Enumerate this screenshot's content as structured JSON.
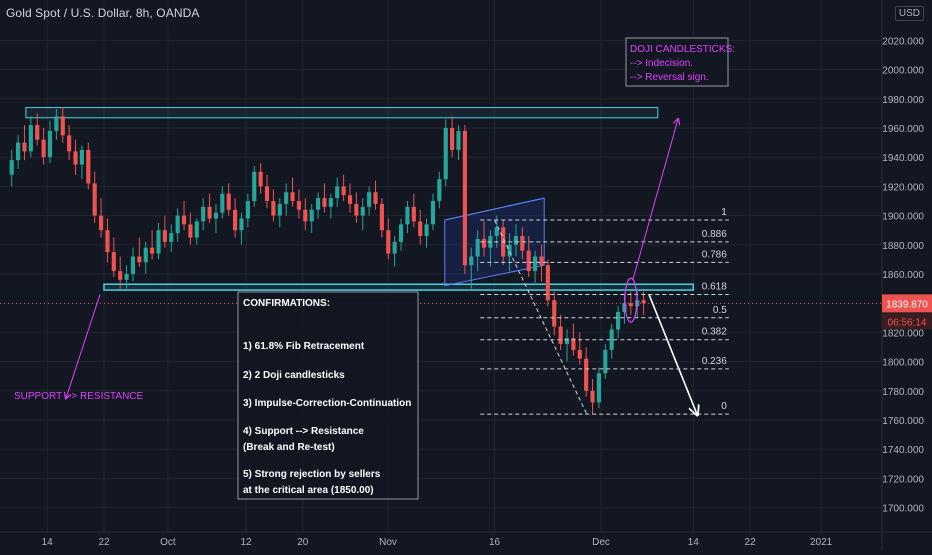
{
  "header": {
    "title": "Gold Spot / U.S. Dollar, 8h, OANDA",
    "currency": "USD"
  },
  "colors": {
    "background": "#131722",
    "grid": "#1f2431",
    "up": "#26a69a",
    "down": "#ef5350",
    "support": "#4dd0e1",
    "channel": "#2962ff",
    "annotation_magenta": "#e040fb",
    "fib_line": "#d1d4dc",
    "current_price": "#ef5350"
  },
  "chart_data": {
    "type": "candlestick",
    "symbol": "Gold Spot / U.S. Dollar",
    "interval": "8h",
    "source": "OANDA",
    "y_axis": {
      "range": [
        1700,
        2020
      ],
      "ticks": [
        1700,
        1720,
        1740,
        1760,
        1780,
        1800,
        1820,
        1840,
        1860,
        1880,
        1900,
        1920,
        1940,
        1960,
        1980,
        2000,
        2020
      ],
      "tick_labels": [
        "1700.000",
        "1720.000",
        "1740.000",
        "1760.000",
        "1780.000",
        "1800.000",
        "1820.000",
        "1840.000",
        "1860.000",
        "1880.000",
        "1900.000",
        "1920.000",
        "1940.000",
        "1960.000",
        "1980.000",
        "2000.000",
        "2020.000"
      ]
    },
    "x_axis": {
      "tick_labels": [
        "14",
        "22",
        "Oct",
        "12",
        "20",
        "Nov",
        "16",
        "Dec",
        "14",
        "22",
        "2021"
      ],
      "tick_dates": [
        "2020-09-14",
        "2020-09-22",
        "2020-10-01",
        "2020-10-12",
        "2020-10-20",
        "2020-11-01",
        "2020-11-16",
        "2020-12-01",
        "2020-12-14",
        "2020-12-22",
        "2021-01-01"
      ]
    },
    "current_price": {
      "value": 1839.87,
      "label": "1839.870",
      "countdown": "06:56:14"
    },
    "resistance_zone": {
      "from": 1967,
      "to": 1974,
      "start": "2020-09-11",
      "end": "2020-12-09"
    },
    "support_resistance_zone": {
      "from": 1849,
      "to": 1853,
      "start": "2020-09-22",
      "end": "2020-12-14"
    },
    "fibonacci": {
      "high": 1897,
      "low": 1764,
      "levels": [
        {
          "ratio": 1,
          "label": "1",
          "price": 1897
        },
        {
          "ratio": 0.886,
          "label": "0.886",
          "price": 1882
        },
        {
          "ratio": 0.786,
          "label": "0.786",
          "price": 1868
        },
        {
          "ratio": 0.618,
          "label": "0.618",
          "price": 1846
        },
        {
          "ratio": 0.5,
          "label": "0.5",
          "price": 1830
        },
        {
          "ratio": 0.382,
          "label": "0.382",
          "price": 1815
        },
        {
          "ratio": 0.236,
          "label": "0.236",
          "price": 1795
        },
        {
          "ratio": 0,
          "label": "0",
          "price": 1764
        }
      ]
    },
    "annotations": {
      "support_to_resistance": "SUPPORT --> RESISTANCE",
      "doji_title": "DOJI CANDLESTICKS:",
      "doji_line1": "--> Indecision.",
      "doji_line2": "--> Reversal sign.",
      "confirmations_title": "CONFIRMATIONS:",
      "confirmations": [
        "1) 61.8%  Fib Retracement",
        "2) 2 Doji candlesticks",
        "3) Impulse-Correction-Continuation",
        "4) Support --> Resistance",
        "     (Break and Re-test)",
        "5) Strong rejection by sellers",
        "     at the critical area (1850.00)"
      ]
    },
    "candles": [
      [
        1928,
        1945,
        1920,
        1938
      ],
      [
        1938,
        1955,
        1932,
        1950
      ],
      [
        1950,
        1962,
        1938,
        1944
      ],
      [
        1944,
        1968,
        1940,
        1962
      ],
      [
        1962,
        1970,
        1948,
        1952
      ],
      [
        1952,
        1960,
        1935,
        1940
      ],
      [
        1940,
        1965,
        1936,
        1958
      ],
      [
        1958,
        1973,
        1952,
        1968
      ],
      [
        1968,
        1974,
        1950,
        1955
      ],
      [
        1955,
        1962,
        1938,
        1944
      ],
      [
        1944,
        1952,
        1928,
        1935
      ],
      [
        1935,
        1948,
        1925,
        1945
      ],
      [
        1945,
        1950,
        1918,
        1922
      ],
      [
        1922,
        1930,
        1895,
        1900
      ],
      [
        1900,
        1912,
        1885,
        1890
      ],
      [
        1890,
        1898,
        1868,
        1875
      ],
      [
        1875,
        1885,
        1858,
        1862
      ],
      [
        1862,
        1872,
        1850,
        1856
      ],
      [
        1856,
        1866,
        1850,
        1860
      ],
      [
        1860,
        1878,
        1855,
        1872
      ],
      [
        1872,
        1885,
        1865,
        1868
      ],
      [
        1868,
        1882,
        1860,
        1878
      ],
      [
        1878,
        1890,
        1870,
        1874
      ],
      [
        1874,
        1895,
        1870,
        1890
      ],
      [
        1890,
        1900,
        1878,
        1882
      ],
      [
        1882,
        1894,
        1875,
        1888
      ],
      [
        1888,
        1905,
        1882,
        1900
      ],
      [
        1900,
        1910,
        1890,
        1894
      ],
      [
        1894,
        1902,
        1880,
        1885
      ],
      [
        1885,
        1898,
        1880,
        1896
      ],
      [
        1896,
        1912,
        1890,
        1906
      ],
      [
        1906,
        1915,
        1895,
        1898
      ],
      [
        1898,
        1908,
        1888,
        1902
      ],
      [
        1902,
        1920,
        1898,
        1915
      ],
      [
        1915,
        1922,
        1900,
        1904
      ],
      [
        1904,
        1912,
        1885,
        1890
      ],
      [
        1890,
        1902,
        1880,
        1898
      ],
      [
        1898,
        1915,
        1892,
        1910
      ],
      [
        1910,
        1934,
        1906,
        1930
      ],
      [
        1930,
        1936,
        1915,
        1920
      ],
      [
        1920,
        1928,
        1905,
        1910
      ],
      [
        1910,
        1918,
        1896,
        1900
      ],
      [
        1900,
        1912,
        1892,
        1908
      ],
      [
        1908,
        1922,
        1900,
        1916
      ],
      [
        1916,
        1926,
        1906,
        1910
      ],
      [
        1910,
        1918,
        1898,
        1904
      ],
      [
        1904,
        1912,
        1890,
        1896
      ],
      [
        1896,
        1908,
        1888,
        1904
      ],
      [
        1904,
        1916,
        1898,
        1912
      ],
      [
        1912,
        1922,
        1902,
        1906
      ],
      [
        1906,
        1915,
        1898,
        1912
      ],
      [
        1912,
        1926,
        1906,
        1920
      ],
      [
        1920,
        1928,
        1910,
        1914
      ],
      [
        1914,
        1922,
        1902,
        1908
      ],
      [
        1908,
        1916,
        1895,
        1900
      ],
      [
        1900,
        1912,
        1890,
        1906
      ],
      [
        1906,
        1920,
        1900,
        1916
      ],
      [
        1916,
        1924,
        1904,
        1908
      ],
      [
        1908,
        1912,
        1885,
        1890
      ],
      [
        1890,
        1898,
        1870,
        1874
      ],
      [
        1874,
        1886,
        1865,
        1882
      ],
      [
        1882,
        1898,
        1876,
        1894
      ],
      [
        1894,
        1910,
        1888,
        1906
      ],
      [
        1906,
        1915,
        1892,
        1896
      ],
      [
        1896,
        1904,
        1880,
        1886
      ],
      [
        1886,
        1898,
        1878,
        1894
      ],
      [
        1894,
        1915,
        1890,
        1910
      ],
      [
        1910,
        1930,
        1905,
        1925
      ],
      [
        1925,
        1966,
        1920,
        1960
      ],
      [
        1960,
        1968,
        1940,
        1945
      ],
      [
        1945,
        1962,
        1938,
        1958
      ],
      [
        1958,
        1962,
        1860,
        1866
      ],
      [
        1866,
        1878,
        1850,
        1872
      ],
      [
        1872,
        1890,
        1862,
        1884
      ],
      [
        1884,
        1896,
        1872,
        1878
      ],
      [
        1878,
        1890,
        1865,
        1886
      ],
      [
        1886,
        1900,
        1878,
        1892
      ],
      [
        1892,
        1897,
        1866,
        1872
      ],
      [
        1872,
        1888,
        1862,
        1880
      ],
      [
        1880,
        1894,
        1872,
        1886
      ],
      [
        1886,
        1892,
        1870,
        1876
      ],
      [
        1876,
        1886,
        1858,
        1862
      ],
      [
        1862,
        1876,
        1854,
        1872
      ],
      [
        1872,
        1880,
        1855,
        1866
      ],
      [
        1866,
        1870,
        1838,
        1842
      ],
      [
        1842,
        1848,
        1818,
        1824
      ],
      [
        1824,
        1832,
        1808,
        1812
      ],
      [
        1812,
        1822,
        1800,
        1816
      ],
      [
        1816,
        1826,
        1804,
        1808
      ],
      [
        1808,
        1820,
        1798,
        1802
      ],
      [
        1802,
        1810,
        1776,
        1780
      ],
      [
        1780,
        1788,
        1764,
        1772
      ],
      [
        1772,
        1796,
        1768,
        1792
      ],
      [
        1792,
        1812,
        1788,
        1808
      ],
      [
        1808,
        1826,
        1802,
        1822
      ],
      [
        1822,
        1838,
        1816,
        1834
      ],
      [
        1834,
        1846,
        1826,
        1840
      ],
      [
        1840,
        1848,
        1832,
        1838
      ],
      [
        1838,
        1849,
        1830,
        1842
      ],
      [
        1842,
        1848,
        1832,
        1840
      ]
    ]
  }
}
